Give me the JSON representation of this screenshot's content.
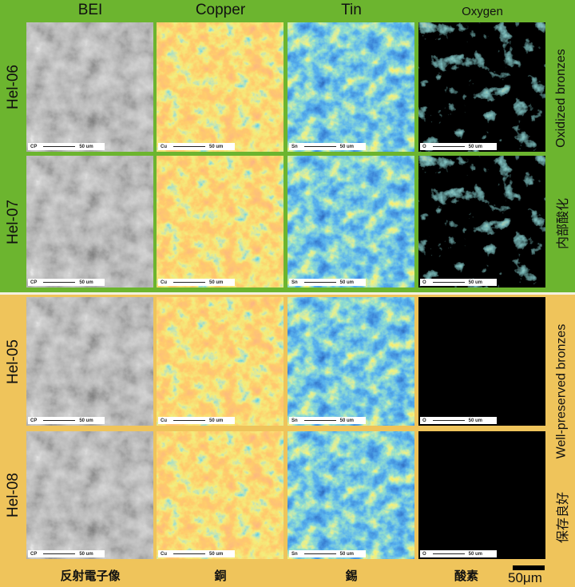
{
  "columns": [
    "BEI",
    "Copper",
    "Tin",
    "Oxygen"
  ],
  "rows": [
    "Hel-06",
    "Hel-07",
    "Hel-05",
    "Hel-08"
  ],
  "groups": {
    "oxidized": {
      "en": "Oxidized bronzes",
      "ja": "内部酸化"
    },
    "preserved": {
      "en": "Well-preserved bronzes",
      "ja": "保存良好"
    }
  },
  "bottom_labels": [
    "反射電子像",
    "銅",
    "錫",
    "酸素"
  ],
  "panel_scale": {
    "prefixes": [
      "CP",
      "Cu",
      "Sn",
      "O"
    ],
    "text": "50 um"
  },
  "scale_bar": "50μm",
  "colors": {
    "oxidized_bg": "#6cb52f",
    "preserved_bg": "#efc45b"
  }
}
